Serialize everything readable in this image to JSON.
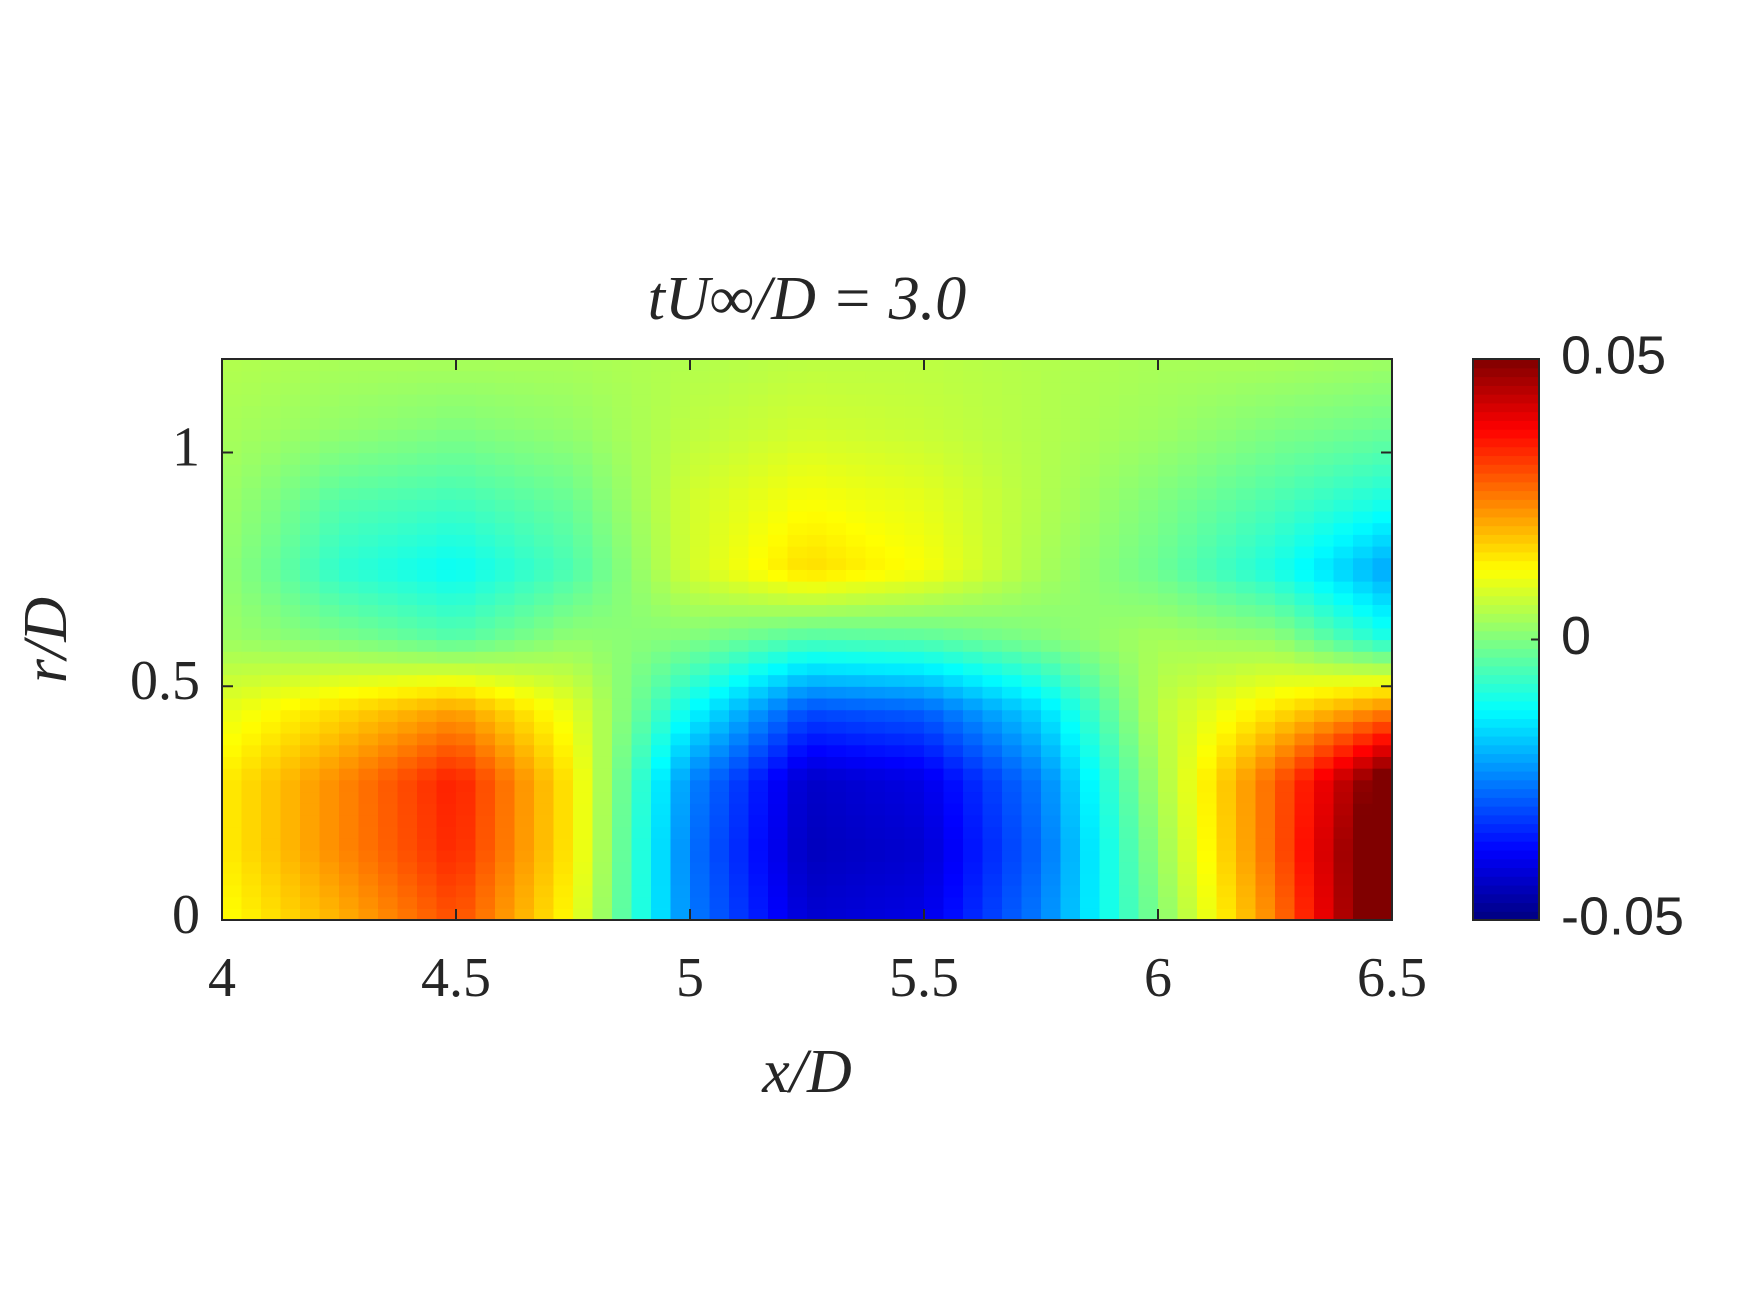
{
  "chart_data": {
    "type": "heatmap",
    "title": "tU∞/D = 3.0",
    "x_label": "x/D",
    "y_label": "r/D",
    "x": [
      4,
      4.25,
      4.5,
      4.75,
      5,
      5.25,
      5.5,
      5.75,
      6,
      6.25,
      6.5
    ],
    "y": [
      0,
      0.15,
      0.3,
      0.45,
      0.6,
      0.75,
      0.9,
      1.05,
      1.2
    ],
    "z": [
      [
        0.012,
        0.02,
        0.03,
        0.012,
        -0.025,
        -0.042,
        -0.04,
        -0.025,
        0.0,
        0.025,
        0.06
      ],
      [
        0.014,
        0.024,
        0.034,
        0.014,
        -0.026,
        -0.044,
        -0.042,
        -0.027,
        0.002,
        0.028,
        0.06
      ],
      [
        0.014,
        0.024,
        0.035,
        0.014,
        -0.024,
        -0.043,
        -0.04,
        -0.025,
        0.004,
        0.028,
        0.055
      ],
      [
        0.01,
        0.016,
        0.022,
        0.01,
        -0.012,
        -0.03,
        -0.028,
        -0.016,
        0.006,
        0.015,
        0.025
      ],
      [
        0.003,
        0.0,
        -0.004,
        0.002,
        0.0,
        -0.005,
        -0.004,
        0.0,
        0.004,
        0.002,
        -0.01
      ],
      [
        0.002,
        -0.008,
        -0.012,
        -0.005,
        0.008,
        0.016,
        0.012,
        0.004,
        -0.002,
        -0.01,
        -0.022
      ],
      [
        0.003,
        -0.004,
        -0.006,
        -0.002,
        0.008,
        0.012,
        0.01,
        0.005,
        0.0,
        -0.005,
        -0.01
      ],
      [
        0.004,
        0.002,
        0.0,
        0.002,
        0.006,
        0.008,
        0.007,
        0.005,
        0.003,
        0.0,
        -0.002
      ],
      [
        0.005,
        0.004,
        0.004,
        0.004,
        0.005,
        0.006,
        0.006,
        0.005,
        0.004,
        0.004,
        0.003
      ]
    ],
    "xlim": [
      4,
      6.5
    ],
    "ylim": [
      0,
      1.2
    ],
    "xticks": [
      4,
      4.5,
      5,
      5.5,
      6,
      6.5
    ],
    "yticks": [
      0,
      0.5,
      1
    ],
    "colormap": "jet",
    "clim": [
      -0.05,
      0.05
    ],
    "cticks": [
      -0.05,
      0,
      0.05
    ]
  }
}
